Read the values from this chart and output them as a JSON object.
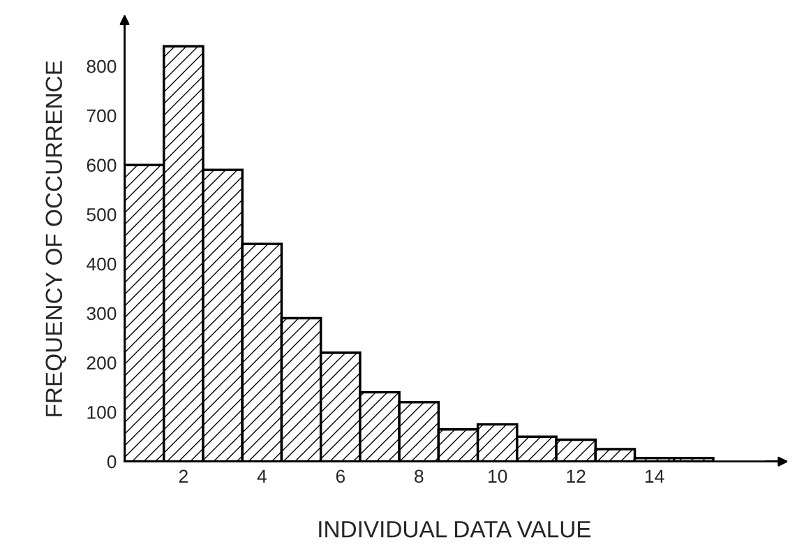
{
  "chart_data": {
    "type": "histogram",
    "xlabel": "INDIVIDUAL DATA VALUE",
    "ylabel": "FREQUENCY OF OCCURRENCE",
    "bins": [
      0.5,
      1.5,
      2.5,
      3.5,
      4.5,
      5.5,
      6.5,
      7.5,
      8.5,
      9.5,
      10.5,
      11.5,
      12.5,
      13.5,
      14.5,
      15.5
    ],
    "values": [
      600,
      840,
      590,
      440,
      290,
      220,
      140,
      120,
      65,
      75,
      50,
      44,
      25,
      7,
      7
    ],
    "color": "#000000",
    "xlim": [
      0.5,
      17.3
    ],
    "xticks": [
      2,
      4,
      6,
      8,
      10,
      12,
      14
    ],
    "ylim": [
      0,
      900
    ],
    "yticks": [
      0,
      100,
      200,
      300,
      400,
      500,
      600,
      700,
      800
    ],
    "grid": false
  }
}
